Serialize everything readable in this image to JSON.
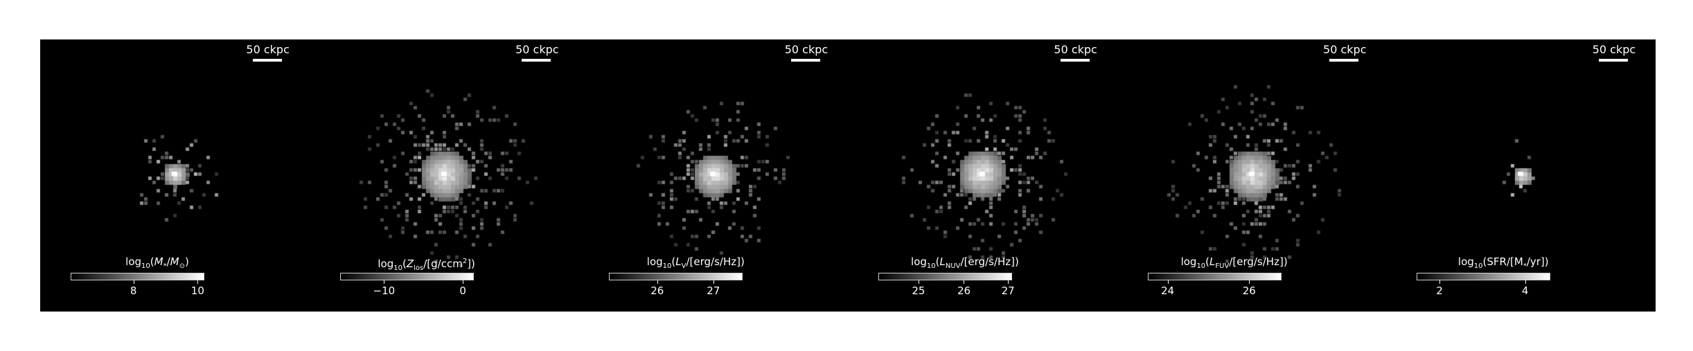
{
  "panels": [
    {
      "scalebar": "50 ckpc",
      "cbar_title": {
        "pre": "log",
        "sub1": "10",
        "open": "(",
        "var": "M",
        "sub2": "*",
        "mid": "/",
        "var2": "M",
        "sub3": "⊙",
        "sup": "",
        "close": ")"
      },
      "ticks": [
        {
          "label": "8",
          "frac": 0.47
        },
        {
          "label": "10",
          "frac": 0.95
        }
      ],
      "blob": {
        "core": 0.55,
        "spread": 0.25
      }
    },
    {
      "scalebar": "50 ckpc",
      "cbar_title": {
        "pre": "log",
        "sub1": "10",
        "open": "(",
        "var": "Z",
        "sub2": "los",
        "mid": "/[g/ccm",
        "var2": "",
        "sub3": "",
        "sup": "2",
        "close": "])"
      },
      "ticks": [
        {
          "label": "−10",
          "frac": 0.33
        },
        {
          "label": "0",
          "frac": 0.92
        }
      ],
      "blob": {
        "core": 0.85,
        "spread": 1.0
      }
    },
    {
      "scalebar": "50 ckpc",
      "cbar_title": {
        "pre": "log",
        "sub1": "10",
        "open": "(",
        "var": "L",
        "sub2": "V",
        "mid": "/[erg/s/Hz]",
        "var2": "",
        "sub3": "",
        "sup": "",
        "close": ")"
      },
      "ticks": [
        {
          "label": "26",
          "frac": 0.36
        },
        {
          "label": "27",
          "frac": 0.78
        }
      ],
      "blob": {
        "core": 0.8,
        "spread": 0.8
      }
    },
    {
      "scalebar": "50 ckpc",
      "cbar_title": {
        "pre": "log",
        "sub1": "10",
        "open": "(",
        "var": "L",
        "sub2": "NUV",
        "mid": "/[erg/s/Hz]",
        "var2": "",
        "sub3": "",
        "sup": "",
        "close": ")"
      },
      "ticks": [
        {
          "label": "25",
          "frac": 0.3
        },
        {
          "label": "26",
          "frac": 0.64
        },
        {
          "label": "27",
          "frac": 0.97
        }
      ],
      "blob": {
        "core": 0.85,
        "spread": 0.9
      }
    },
    {
      "scalebar": "50 ckpc",
      "cbar_title": {
        "pre": "log",
        "sub1": "10",
        "open": "(",
        "var": "L",
        "sub2": "FUV",
        "mid": "/[erg/s/Hz]",
        "var2": "",
        "sub3": "",
        "sup": "",
        "close": ")"
      },
      "ticks": [
        {
          "label": "24",
          "frac": 0.15
        },
        {
          "label": "26",
          "frac": 0.76
        }
      ],
      "blob": {
        "core": 0.85,
        "spread": 1.0
      }
    },
    {
      "scalebar": "50 ckpc",
      "cbar_title": {
        "pre": "log",
        "sub1": "10",
        "open": "(",
        "var": "",
        "sub2": "",
        "mid": "SFR/[M",
        "var2": "",
        "sub3": "*",
        "sup": "",
        "close": "/yr])"
      },
      "ticks": [
        {
          "label": "2",
          "frac": 0.17
        },
        {
          "label": "4",
          "frac": 0.81
        }
      ],
      "blob": {
        "core": 0.45,
        "spread": 0.05
      }
    }
  ]
}
